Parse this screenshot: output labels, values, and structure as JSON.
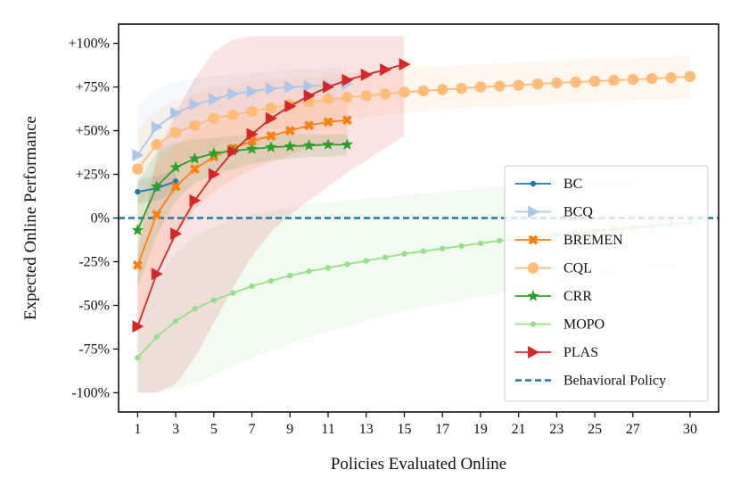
{
  "chart_data": {
    "type": "line",
    "xlabel": "Policies Evaluated Online",
    "ylabel": "Expected Online Performance",
    "xlim": [
      0.0,
      31.5
    ],
    "ylim": [
      -111,
      111
    ],
    "x_ticks": [
      1,
      3,
      5,
      7,
      9,
      11,
      13,
      15,
      17,
      19,
      21,
      23,
      25,
      27,
      30
    ],
    "y_ticks": [
      {
        "value": 100,
        "label": "+100%"
      },
      {
        "value": 75,
        "label": "+75%"
      },
      {
        "value": 50,
        "label": "+50%"
      },
      {
        "value": 25,
        "label": "+25%"
      },
      {
        "value": 0,
        "label": "0%"
      },
      {
        "value": -25,
        "label": "-25%"
      },
      {
        "value": -50,
        "label": "-50%"
      },
      {
        "value": -75,
        "label": "-75%"
      },
      {
        "value": -100,
        "label": "-100%"
      }
    ],
    "grid": false,
    "legend_position": "lower-right",
    "baseline": {
      "name": "Behavioral Policy",
      "y": 0,
      "color": "#1f77b4",
      "style": "dashed"
    },
    "series": [
      {
        "name": "BC",
        "color": "#1f77b4",
        "marker": "circle-small",
        "x": [
          1,
          2,
          3
        ],
        "y": [
          15,
          17,
          21
        ],
        "band_lower": [
          8,
          10,
          14
        ],
        "band_upper": [
          22,
          24,
          28
        ]
      },
      {
        "name": "BCQ",
        "color": "#aec7e8",
        "marker": "triangle-right",
        "x": [
          1,
          2,
          3,
          4,
          5,
          6,
          7,
          8,
          9,
          10,
          11,
          12
        ],
        "y": [
          36,
          52,
          60,
          65,
          68,
          71,
          72.5,
          74,
          75,
          75.5,
          76,
          77
        ],
        "band_lower": [
          8,
          30,
          42,
          50,
          55,
          58,
          61,
          63,
          64,
          65,
          66,
          67
        ],
        "band_upper": [
          64,
          74,
          78,
          80,
          81,
          82,
          83,
          84,
          85,
          85,
          86,
          86
        ]
      },
      {
        "name": "BREMEN",
        "color": "#ff7f0e",
        "marker": "x-cross",
        "x": [
          1,
          2,
          3,
          4,
          5,
          6,
          7,
          8,
          9,
          10,
          11,
          12
        ],
        "y": [
          -27,
          2,
          18,
          28,
          35,
          40,
          44,
          47,
          50,
          53,
          55,
          56
        ],
        "band_lower": [
          -60,
          -30,
          -10,
          5,
          15,
          22,
          28,
          32,
          36,
          40,
          42,
          44
        ],
        "band_upper": [
          10,
          30,
          42,
          50,
          55,
          58,
          60,
          62,
          64,
          66,
          67,
          68
        ]
      },
      {
        "name": "CQL",
        "color": "#ffbb78",
        "marker": "circle-large",
        "x": [
          1,
          2,
          3,
          4,
          5,
          6,
          7,
          8,
          9,
          10,
          11,
          12,
          13,
          14,
          15,
          16,
          17,
          18,
          19,
          20,
          21,
          22,
          23,
          24,
          25,
          26,
          27,
          28,
          29,
          30
        ],
        "y": [
          28,
          42,
          49,
          53,
          57,
          59,
          61,
          63,
          65,
          66.5,
          68,
          69,
          70,
          71,
          72,
          72.8,
          73.5,
          74.2,
          75,
          75.5,
          76,
          76.7,
          77.3,
          77.8,
          78.3,
          78.8,
          79.3,
          79.8,
          80.3,
          81
        ],
        "band_lower": [
          5,
          20,
          30,
          36,
          40,
          44,
          47,
          50,
          52,
          54,
          56,
          57,
          58,
          59,
          60,
          61,
          62,
          63,
          63.5,
          64,
          64.5,
          65,
          65.5,
          66,
          66.5,
          67,
          67.3,
          67.6,
          68,
          68.5
        ],
        "band_upper": [
          50,
          62,
          68,
          71,
          74,
          76,
          78,
          79,
          80,
          81,
          82,
          83,
          84,
          85,
          86,
          86.5,
          87,
          87.5,
          88,
          88.5,
          89,
          89.5,
          90,
          90.5,
          91,
          91.3,
          91.6,
          92,
          92.5,
          93
        ]
      },
      {
        "name": "CRR",
        "color": "#2ca02c",
        "marker": "star",
        "x": [
          1,
          2,
          3,
          4,
          5,
          6,
          7,
          8,
          9,
          10,
          11,
          12
        ],
        "y": [
          -7,
          18,
          29,
          34,
          37,
          38.5,
          39.5,
          40.5,
          41,
          41.5,
          42,
          42
        ],
        "band_lower": [
          -40,
          -10,
          10,
          20,
          25,
          28,
          31,
          33,
          34,
          35,
          35,
          36
        ],
        "band_upper": [
          20,
          38,
          43,
          45,
          46,
          47,
          47,
          47,
          48,
          48,
          48,
          48
        ]
      },
      {
        "name": "MOPO",
        "color": "#98df8a",
        "marker": "circle-small",
        "x": [
          1,
          2,
          3,
          4,
          5,
          6,
          7,
          8,
          9,
          10,
          11,
          12,
          13,
          14,
          15,
          16,
          17,
          18,
          19,
          20,
          21,
          22,
          23,
          24,
          25,
          26,
          27,
          28,
          29,
          30
        ],
        "y": [
          -80,
          -68,
          -59,
          -52,
          -47,
          -43,
          -39,
          -36,
          -33,
          -30.5,
          -28.5,
          -26.5,
          -24.5,
          -22.5,
          -20.5,
          -19,
          -17.5,
          -16,
          -14.5,
          -13,
          -12,
          -11,
          -9.5,
          -8.5,
          -7.5,
          -6.5,
          -5.5,
          -4.5,
          -3.5,
          -2.5
        ],
        "band_lower": [
          -100,
          -100,
          -98,
          -95,
          -90,
          -85,
          -80,
          -76,
          -72,
          -68,
          -65,
          -62,
          -59,
          -56,
          -53,
          -51,
          -49,
          -47,
          -45,
          -43,
          -41,
          -39,
          -37,
          -35,
          -34,
          -32,
          -30,
          -29,
          -28,
          -27
        ],
        "band_upper": [
          -60,
          -35,
          -20,
          -10,
          -5,
          -1,
          2,
          4,
          6,
          8,
          9,
          10,
          11,
          12,
          13,
          14,
          15,
          16,
          17,
          18,
          18.5,
          19,
          19.5,
          20,
          20.5,
          21,
          21.5,
          22,
          22.5,
          23
        ]
      },
      {
        "name": "PLAS",
        "color": "#d62728",
        "marker": "triangle-right",
        "x": [
          1,
          2,
          3,
          4,
          5,
          6,
          7,
          8,
          9,
          10,
          11,
          12,
          13,
          14,
          15
        ],
        "y": [
          -62,
          -32,
          -9,
          10,
          25,
          38,
          48,
          57,
          64,
          70,
          75,
          79,
          82,
          85,
          88
        ],
        "band_lower": [
          -100,
          -100,
          -95,
          -80,
          -60,
          -40,
          -22,
          -8,
          2,
          10,
          18,
          26,
          33,
          40,
          47
        ],
        "band_upper": [
          -20,
          35,
          60,
          80,
          95,
          102,
          104,
          104,
          104,
          104,
          104,
          104,
          104,
          104,
          104
        ]
      }
    ]
  }
}
